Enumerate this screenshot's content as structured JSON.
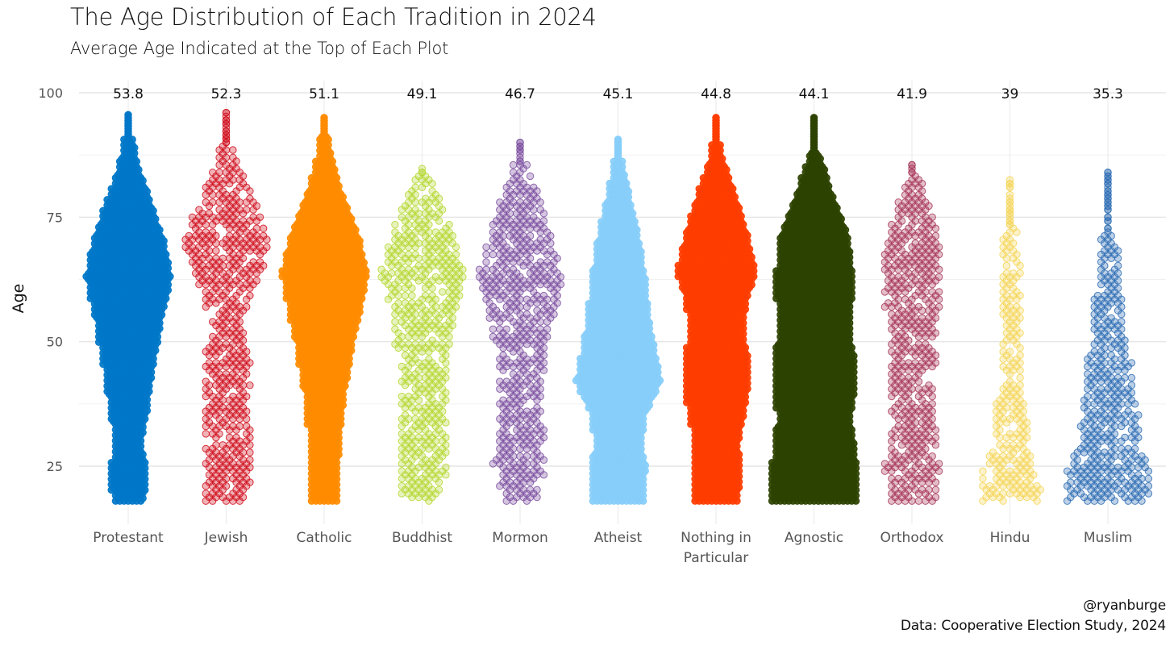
{
  "chart_data": {
    "type": "beeswarm",
    "title": "The Age Distribution of Each Tradition in 2024",
    "subtitle": "Average Age Indicated at the Top of Each Plot",
    "ylabel": "Age",
    "xlabel": "",
    "ylim": [
      15,
      100
    ],
    "yticks": [
      25,
      50,
      75,
      100
    ],
    "grid": true,
    "categories": [
      "Protestant",
      "Jewish",
      "Catholic",
      "Buddhist",
      "Mormon",
      "Atheist",
      "Nothing in Particular",
      "Agnostic",
      "Orthodox",
      "Hindu",
      "Muslim"
    ],
    "category_lines": [
      [
        "Protestant"
      ],
      [
        "Jewish"
      ],
      [
        "Catholic"
      ],
      [
        "Buddhist"
      ],
      [
        "Mormon"
      ],
      [
        "Atheist"
      ],
      [
        "Nothing in",
        "Particular"
      ],
      [
        "Agnostic"
      ],
      [
        "Orthodox"
      ],
      [
        "Hindu"
      ],
      [
        "Muslim"
      ]
    ],
    "average_labels": [
      "53.8",
      "52.3",
      "51.1",
      "49.1",
      "46.7",
      "45.1",
      "44.8",
      "44.1",
      "41.9",
      "39",
      "35.3"
    ],
    "averages": [
      53.8,
      52.3,
      51.1,
      49.1,
      46.7,
      45.1,
      44.8,
      44.1,
      41.9,
      39,
      35.3
    ],
    "colors": [
      "#0077c8",
      "#d0101e",
      "#ff8c00",
      "#b5d832",
      "#7b4fa0",
      "#87cefa",
      "#ff3d00",
      "#2d4200",
      "#a8385a",
      "#f5d65a",
      "#2e6db4"
    ],
    "dense": [
      true,
      false,
      true,
      false,
      false,
      true,
      true,
      true,
      false,
      false,
      false
    ],
    "age_range": [
      [
        18,
        96
      ],
      [
        18,
        96
      ],
      [
        18,
        95
      ],
      [
        18,
        85
      ],
      [
        18,
        90
      ],
      [
        18,
        91
      ],
      [
        18,
        95
      ],
      [
        18,
        95
      ],
      [
        18,
        86
      ],
      [
        18,
        83
      ],
      [
        18,
        84
      ]
    ],
    "shape_profile": [
      [
        [
          18,
          0.38
        ],
        [
          25,
          0.42
        ],
        [
          29,
          0.3
        ],
        [
          35,
          0.42
        ],
        [
          45,
          0.58
        ],
        [
          55,
          0.8
        ],
        [
          63,
          1.0
        ],
        [
          70,
          0.85
        ],
        [
          78,
          0.52
        ],
        [
          85,
          0.24
        ],
        [
          92,
          0.07
        ],
        [
          96,
          0.03
        ]
      ],
      [
        [
          18,
          0.58
        ],
        [
          25,
          0.62
        ],
        [
          32,
          0.55
        ],
        [
          38,
          0.46
        ],
        [
          42,
          0.62
        ],
        [
          46,
          0.56
        ],
        [
          52,
          0.4
        ],
        [
          58,
          0.52
        ],
        [
          65,
          0.88
        ],
        [
          70,
          1.0
        ],
        [
          78,
          0.7
        ],
        [
          85,
          0.32
        ],
        [
          92,
          0.07
        ],
        [
          96,
          0.03
        ]
      ],
      [
        [
          18,
          0.3
        ],
        [
          25,
          0.32
        ],
        [
          30,
          0.35
        ],
        [
          40,
          0.48
        ],
        [
          50,
          0.68
        ],
        [
          58,
          0.88
        ],
        [
          64,
          1.0
        ],
        [
          72,
          0.78
        ],
        [
          80,
          0.4
        ],
        [
          88,
          0.15
        ],
        [
          95,
          0.04
        ]
      ],
      [
        [
          18,
          0.45
        ],
        [
          25,
          0.62
        ],
        [
          35,
          0.55
        ],
        [
          45,
          0.58
        ],
        [
          55,
          0.75
        ],
        [
          63,
          1.0
        ],
        [
          70,
          0.78
        ],
        [
          78,
          0.45
        ],
        [
          85,
          0.1
        ]
      ],
      [
        [
          18,
          0.38
        ],
        [
          25,
          0.65
        ],
        [
          30,
          0.6
        ],
        [
          37,
          0.5
        ],
        [
          45,
          0.55
        ],
        [
          50,
          0.66
        ],
        [
          56,
          0.85
        ],
        [
          63,
          1.0
        ],
        [
          70,
          0.8
        ],
        [
          78,
          0.5
        ],
        [
          85,
          0.18
        ],
        [
          90,
          0.04
        ]
      ],
      [
        [
          18,
          0.6
        ],
        [
          25,
          0.64
        ],
        [
          29,
          0.56
        ],
        [
          35,
          0.62
        ],
        [
          42,
          1.0
        ],
        [
          48,
          0.86
        ],
        [
          55,
          0.72
        ],
        [
          62,
          0.64
        ],
        [
          70,
          0.5
        ],
        [
          78,
          0.3
        ],
        [
          85,
          0.12
        ],
        [
          91,
          0.04
        ]
      ],
      [
        [
          18,
          0.52
        ],
        [
          25,
          0.55
        ],
        [
          30,
          0.52
        ],
        [
          38,
          0.7
        ],
        [
          45,
          0.78
        ],
        [
          52,
          0.62
        ],
        [
          58,
          0.72
        ],
        [
          64,
          0.93
        ],
        [
          72,
          0.72
        ],
        [
          80,
          0.42
        ],
        [
          88,
          0.12
        ],
        [
          95,
          0.04
        ]
      ],
      [
        [
          18,
          1.0
        ],
        [
          25,
          1.0
        ],
        [
          30,
          0.92
        ],
        [
          35,
          0.86
        ],
        [
          42,
          0.98
        ],
        [
          47,
          0.94
        ],
        [
          52,
          0.82
        ],
        [
          60,
          0.9
        ],
        [
          65,
          0.88
        ],
        [
          72,
          0.78
        ],
        [
          80,
          0.42
        ],
        [
          88,
          0.1
        ],
        [
          95,
          0.04
        ]
      ],
      [
        [
          18,
          0.58
        ],
        [
          25,
          0.65
        ],
        [
          32,
          0.55
        ],
        [
          40,
          0.5
        ],
        [
          50,
          0.6
        ],
        [
          60,
          0.65
        ],
        [
          68,
          0.7
        ],
        [
          75,
          0.48
        ],
        [
          82,
          0.22
        ],
        [
          86,
          0.06
        ]
      ],
      [
        [
          18,
          0.65
        ],
        [
          22,
          0.75
        ],
        [
          27,
          0.5
        ],
        [
          33,
          0.4
        ],
        [
          40,
          0.3
        ],
        [
          50,
          0.26
        ],
        [
          58,
          0.24
        ],
        [
          63,
          0.3
        ],
        [
          70,
          0.18
        ],
        [
          78,
          0.12
        ],
        [
          83,
          0.04
        ]
      ],
      [
        [
          18,
          1.0
        ],
        [
          25,
          0.95
        ],
        [
          30,
          0.72
        ],
        [
          35,
          0.74
        ],
        [
          40,
          0.58
        ],
        [
          45,
          0.58
        ],
        [
          50,
          0.4
        ],
        [
          56,
          0.34
        ],
        [
          62,
          0.3
        ],
        [
          68,
          0.24
        ],
        [
          73,
          0.12
        ],
        [
          78,
          0.06
        ],
        [
          84,
          0.03
        ]
      ]
    ]
  },
  "caption": {
    "handle": "@ryanburge",
    "source": "Data: Cooperative Election Study, 2024"
  }
}
